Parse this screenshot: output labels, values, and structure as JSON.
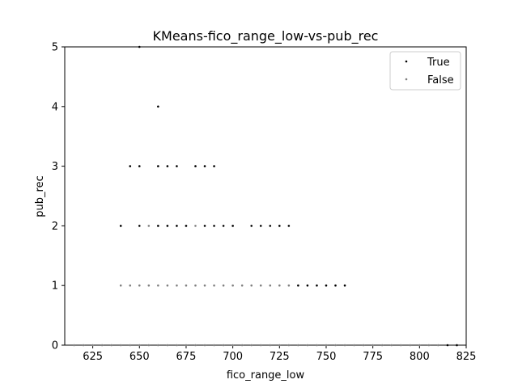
{
  "chart_data": {
    "type": "scatter",
    "title": "KMeans-fico_range_low-vs-pub_rec",
    "xlabel": "fico_range_low",
    "ylabel": "pub_rec",
    "xlim": [
      610,
      825
    ],
    "ylim": [
      0,
      5
    ],
    "xticks": [
      625,
      650,
      675,
      700,
      725,
      750,
      775,
      800,
      825
    ],
    "yticks": [
      0,
      1,
      2,
      3,
      4,
      5
    ],
    "legend_position": "top-right",
    "series": [
      {
        "name": "True",
        "color": "#000000",
        "x": [
          640,
          650,
          660,
          665,
          670,
          675,
          685,
          690,
          695,
          700,
          710,
          715,
          720,
          725,
          730,
          645,
          650,
          660,
          665,
          670,
          680,
          685,
          690,
          660,
          650,
          735,
          740,
          745,
          750,
          755,
          760,
          815,
          820
        ],
        "y": [
          2,
          2,
          2,
          2,
          2,
          2,
          2,
          2,
          2,
          2,
          2,
          2,
          2,
          2,
          2,
          3,
          3,
          3,
          3,
          3,
          3,
          3,
          3,
          4,
          5,
          1,
          1,
          1,
          1,
          1,
          1,
          0,
          0
        ]
      },
      {
        "name": "False",
        "color": "#808080",
        "x": [
          615,
          620,
          625,
          630,
          635,
          640,
          645,
          650,
          655,
          660,
          665,
          670,
          675,
          680,
          685,
          690,
          695,
          700,
          705,
          710,
          715,
          720,
          725,
          730,
          735,
          740,
          745,
          750,
          755,
          760,
          765,
          770,
          775,
          780,
          785,
          790,
          795,
          800,
          805,
          810,
          820,
          640,
          645,
          650,
          655,
          660,
          665,
          670,
          675,
          680,
          685,
          690,
          695,
          700,
          705,
          710,
          715,
          720,
          725,
          730,
          640,
          655,
          660,
          665,
          670,
          675,
          680,
          700,
          725
        ],
        "y": [
          0,
          0,
          0,
          0,
          0,
          0,
          0,
          0,
          0,
          0,
          0,
          0,
          0,
          0,
          0,
          0,
          0,
          0,
          0,
          0,
          0,
          0,
          0,
          0,
          0,
          0,
          0,
          0,
          0,
          0,
          0,
          0,
          0,
          0,
          0,
          0,
          0,
          0,
          0,
          0,
          0,
          1,
          1,
          1,
          1,
          1,
          1,
          1,
          1,
          1,
          1,
          1,
          1,
          1,
          1,
          1,
          1,
          1,
          1,
          1,
          2,
          2,
          2,
          2,
          2,
          2,
          2,
          2,
          2
        ]
      }
    ]
  }
}
